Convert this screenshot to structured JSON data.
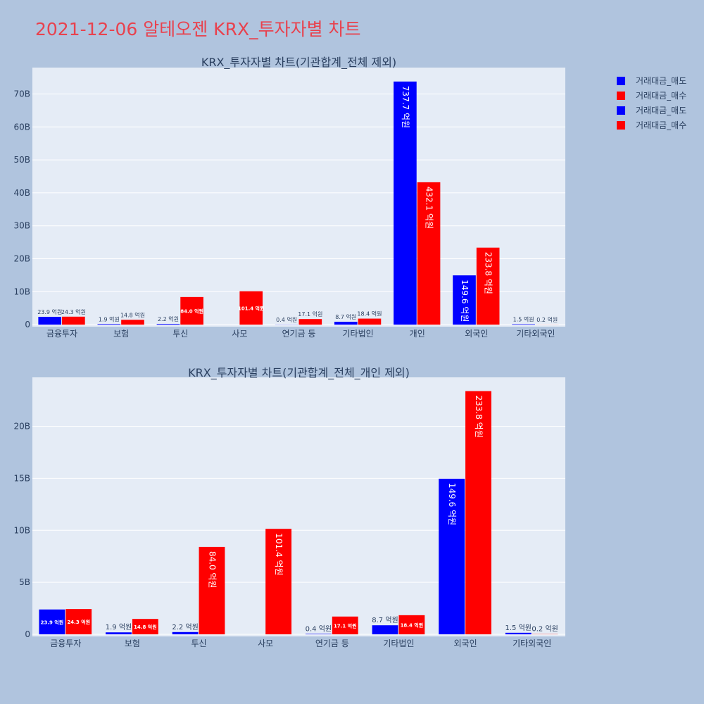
{
  "page_title": "2021-12-06 알테오젠 KRX_투자자별 차트",
  "colors": {
    "sell": "#0000ff",
    "buy": "#ff0000",
    "plot_bg": "#e5ecf6",
    "page_bg": "#b0c4de",
    "title": "#e8424e"
  },
  "legend": [
    {
      "label": "거래대금_매도",
      "color": "#0000ff"
    },
    {
      "label": "거래대금_매수",
      "color": "#ff0000"
    },
    {
      "label": "거래대금_매도",
      "color": "#0000ff"
    },
    {
      "label": "거래대금_매수",
      "color": "#ff0000"
    }
  ],
  "chart_data": [
    {
      "type": "bar",
      "title": "KRX_투자자별 차트(기관합계_전체 제외)",
      "categories": [
        "금융투자",
        "보험",
        "투신",
        "사모",
        "연기금 등",
        "기타법인",
        "개인",
        "외국인",
        "기타외국인"
      ],
      "series": [
        {
          "name": "거래대금_매도",
          "values": [
            2.39,
            0.19,
            0.22,
            0,
            0.04,
            0.87,
            73.77,
            14.96,
            0.15
          ],
          "labels": [
            "23.9 억원",
            "1.9 억원",
            "2.2 억원",
            "",
            "0.4 억원",
            "8.7 억원",
            "737.7 억원",
            "149.6 억원",
            "1.5 억원"
          ]
        },
        {
          "name": "거래대금_매수",
          "values": [
            2.43,
            1.48,
            8.4,
            10.14,
            1.71,
            1.84,
            43.21,
            23.38,
            0.02
          ],
          "labels": [
            "24.3 억원",
            "14.8 억원",
            "84.0 억원",
            "101.4 억원",
            "17.1 억원",
            "18.4 억원",
            "432.1 억원",
            "233.8 억원",
            "0.2 억원"
          ]
        }
      ],
      "yticks": [
        0,
        10,
        20,
        30,
        40,
        50,
        60,
        70
      ],
      "ytick_labels": [
        "0",
        "10B",
        "20B",
        "30B",
        "40B",
        "50B",
        "60B",
        "70B"
      ],
      "ylim": [
        -0.6,
        78
      ]
    },
    {
      "type": "bar",
      "title": "KRX_투자자별 차트(기관합계_전체_개인 제외)",
      "categories": [
        "금융투자",
        "보험",
        "투신",
        "사모",
        "연기금 등",
        "기타법인",
        "외국인",
        "기타외국인"
      ],
      "series": [
        {
          "name": "거래대금_매도",
          "values": [
            2.39,
            0.19,
            0.22,
            0,
            0.04,
            0.87,
            14.96,
            0.15
          ],
          "labels": [
            "23.9 억원",
            "1.9 억원",
            "2.2 억원",
            "",
            "0.4 억원",
            "8.7 억원",
            "149.6 억원",
            "1.5 억원"
          ]
        },
        {
          "name": "거래대금_매수",
          "values": [
            2.43,
            1.48,
            8.4,
            10.14,
            1.71,
            1.84,
            23.38,
            0.02
          ],
          "labels": [
            "24.3 억원",
            "14.8 억원",
            "84.0 억원",
            "101.4 억원",
            "17.1 억원",
            "18.4 억원",
            "233.8 억원",
            "0.2 억원"
          ]
        }
      ],
      "yticks": [
        0,
        5,
        10,
        15,
        20
      ],
      "ytick_labels": [
        "0",
        "5B",
        "10B",
        "15B",
        "20B"
      ],
      "ylim": [
        -0.2,
        24.7
      ]
    }
  ]
}
